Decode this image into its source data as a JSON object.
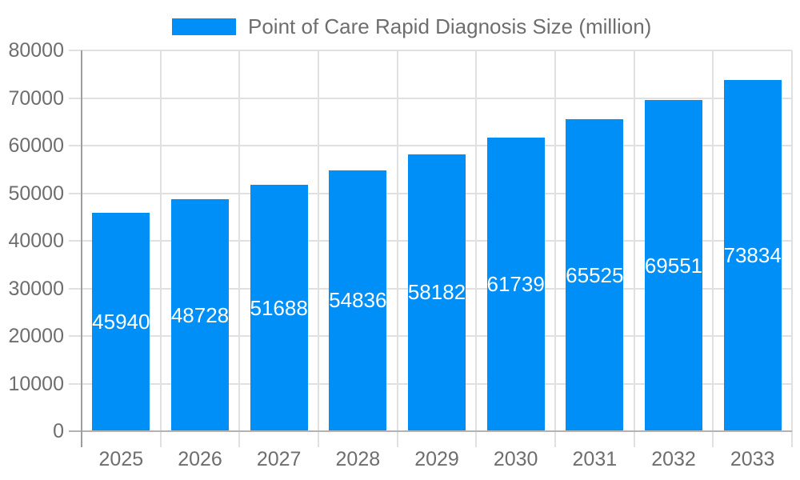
{
  "legend": {
    "label": "Point of Care Rapid Diagnosis Size (million)",
    "swatch_color": "#008FF7"
  },
  "chart_data": {
    "type": "bar",
    "title": "Point of Care Rapid Diagnosis Size (million)",
    "categories": [
      "2025",
      "2026",
      "2027",
      "2028",
      "2029",
      "2030",
      "2031",
      "2032",
      "2033"
    ],
    "values": [
      45940,
      48728,
      51688,
      54836,
      58182,
      61739,
      65525,
      69551,
      73834
    ],
    "series": [
      {
        "name": "Point of Care Rapid Diagnosis Size (million)",
        "values": [
          45940,
          48728,
          51688,
          54836,
          58182,
          61739,
          65525,
          69551,
          73834
        ]
      }
    ],
    "xlabel": "",
    "ylabel": "",
    "ylim": [
      0,
      80000
    ],
    "ytick_interval": 10000,
    "ytick_labels": [
      "0",
      "10000",
      "20000",
      "30000",
      "40000",
      "50000",
      "60000",
      "70000",
      "80000"
    ],
    "grid": true,
    "legend_position": "top-center",
    "value_labels": "inside-center",
    "bar_color": "#008FF7",
    "value_label_color": "#ffffff",
    "axis_label_color": "#6e6e6e",
    "gridline_color": "#e0e0e0",
    "axis_line_color": "#9e9e9e",
    "baseline_color": "#b3b3b3",
    "background_color": "#ffffff"
  }
}
